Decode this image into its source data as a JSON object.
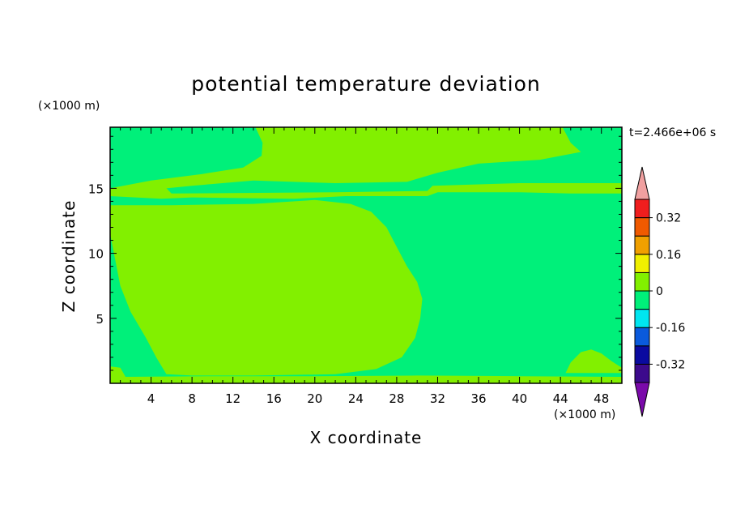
{
  "chart_data": {
    "type": "heatmap",
    "title": "potential temperature deviation",
    "xlabel": "X coordinate",
    "ylabel": "Z coordinate",
    "x_unit": "(×1000 m)",
    "y_unit": "(×1000 m)",
    "time_label": "t=2.466e+06 s",
    "xlim": [
      0,
      50
    ],
    "ylim": [
      0,
      19.7
    ],
    "x_ticks": [
      4,
      8,
      12,
      16,
      20,
      24,
      28,
      32,
      36,
      40,
      44,
      48
    ],
    "x_tick_labels": [
      "4",
      "8",
      "12",
      "16",
      "20",
      "24",
      "28",
      "32",
      "36",
      "40",
      "44",
      "48"
    ],
    "y_ticks": [
      5,
      10,
      15
    ],
    "y_tick_labels": [
      "5",
      "10",
      "15"
    ],
    "colorbar": {
      "levels": [
        -0.4,
        -0.32,
        -0.24,
        -0.16,
        -0.08,
        0,
        0.08,
        0.16,
        0.24,
        0.32,
        0.4
      ],
      "colors": [
        "#3c0a8c",
        "#0a0aa0",
        "#0a5adc",
        "#00e6f0",
        "#00f07a",
        "#82f000",
        "#f0f000",
        "#f0a000",
        "#f05a00",
        "#f01e1e"
      ],
      "under_color": "#7a0aaa",
      "over_color": "#f0a0a0",
      "labels": [
        {
          "value": 0.32,
          "text": "0.32"
        },
        {
          "value": 0.16,
          "text": "0.16"
        },
        {
          "value": 0,
          "text": "0"
        },
        {
          "value": -0.16,
          "text": "-0.16"
        },
        {
          "value": -0.32,
          "text": "-0.32"
        }
      ]
    },
    "background_level_color": "#00f07a",
    "regions": [
      {
        "name": "central warm anomaly",
        "color": "#82f000",
        "points": [
          [
            0,
            13.7
          ],
          [
            6,
            13.7
          ],
          [
            14,
            13.8
          ],
          [
            20,
            14.1
          ],
          [
            23.5,
            13.8
          ],
          [
            25.5,
            13.2
          ],
          [
            27,
            12.0
          ],
          [
            28,
            10.5
          ],
          [
            29,
            9.0
          ],
          [
            30,
            7.8
          ],
          [
            30.5,
            6.5
          ],
          [
            30.3,
            5.0
          ],
          [
            29.8,
            3.5
          ],
          [
            28.5,
            2.0
          ],
          [
            26,
            1.1
          ],
          [
            22,
            0.7
          ],
          [
            14,
            0.6
          ],
          [
            8,
            0.6
          ],
          [
            5.5,
            0.7
          ],
          [
            4.5,
            2.0
          ],
          [
            3.5,
            3.5
          ],
          [
            2.0,
            5.5
          ],
          [
            1.0,
            7.5
          ],
          [
            0.5,
            9.5
          ],
          [
            0,
            11.5
          ]
        ]
      },
      {
        "name": "upper warm band",
        "color": "#82f000",
        "points": [
          [
            14.2,
            19.7
          ],
          [
            44.2,
            19.7
          ],
          [
            45,
            18.5
          ],
          [
            46,
            17.8
          ],
          [
            42,
            17.2
          ],
          [
            36,
            16.9
          ],
          [
            32,
            16.2
          ],
          [
            29,
            15.5
          ],
          [
            22,
            15.4
          ],
          [
            14,
            15.6
          ],
          [
            8,
            15.2
          ],
          [
            5.5,
            15.0
          ],
          [
            6,
            14.6
          ],
          [
            22,
            14.7
          ],
          [
            31,
            14.8
          ],
          [
            31.5,
            15.2
          ],
          [
            40,
            15.4
          ],
          [
            48,
            15.4
          ],
          [
            50,
            15.4
          ],
          [
            50,
            14.6
          ],
          [
            45,
            14.6
          ],
          [
            40,
            14.7
          ],
          [
            32,
            14.7
          ],
          [
            31,
            14.4
          ],
          [
            23,
            14.4
          ],
          [
            18,
            14.2
          ],
          [
            8,
            14.3
          ],
          [
            5,
            14.2
          ],
          [
            0,
            14.4
          ],
          [
            0,
            15.0
          ],
          [
            4,
            15.6
          ],
          [
            9,
            16.1
          ],
          [
            13,
            16.6
          ],
          [
            14.8,
            17.5
          ],
          [
            14.9,
            18.5
          ]
        ]
      },
      {
        "name": "lower-right warm patch",
        "color": "#82f000",
        "points": [
          [
            44.5,
            0.8
          ],
          [
            45,
            1.6
          ],
          [
            46,
            2.4
          ],
          [
            47,
            2.6
          ],
          [
            48,
            2.3
          ],
          [
            49,
            1.7
          ],
          [
            50,
            1.2
          ],
          [
            50,
            0.8
          ]
        ]
      },
      {
        "name": "surface warm strip",
        "color": "#82f000",
        "points": [
          [
            0,
            0
          ],
          [
            50,
            0
          ],
          [
            50,
            0.5
          ],
          [
            40,
            0.55
          ],
          [
            30,
            0.6
          ],
          [
            20,
            0.55
          ],
          [
            10,
            0.55
          ],
          [
            1.5,
            0.5
          ],
          [
            1.0,
            1.2
          ],
          [
            0,
            1.3
          ]
        ]
      }
    ]
  }
}
